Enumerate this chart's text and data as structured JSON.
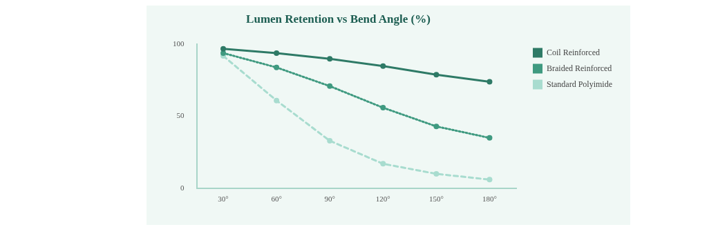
{
  "chart_data": {
    "type": "line",
    "title": "Lumen Retention vs Bend Angle (%)",
    "categories": [
      "30°",
      "60°",
      "90°",
      "120°",
      "150°",
      "180°"
    ],
    "series": [
      {
        "name": "Coil Reinforced",
        "color": "#2e7a66",
        "values": [
          97,
          94,
          90,
          85,
          79,
          74
        ],
        "line_style": "solid"
      },
      {
        "name": "Braided Reinforced",
        "color": "#3f9a80",
        "values": [
          94,
          84,
          71,
          56,
          43,
          35
        ],
        "line_style": "dotted"
      },
      {
        "name": "Standard Polyimide",
        "color": "#a8dccf",
        "values": [
          92,
          61,
          33,
          17,
          10,
          6
        ],
        "line_style": "dashed"
      }
    ],
    "ylim": [
      0,
      100
    ],
    "yticks": [
      0,
      50,
      100
    ],
    "grid": false,
    "legend": "top right",
    "marker": "circle"
  }
}
